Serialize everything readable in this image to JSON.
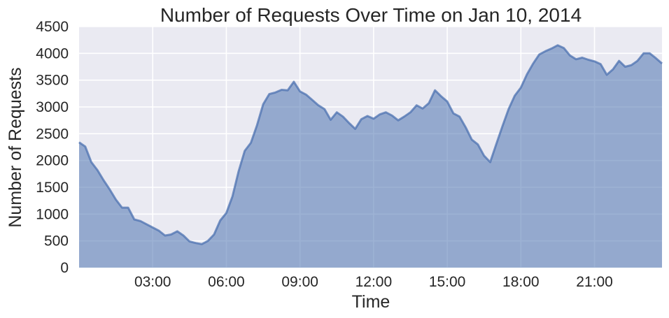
{
  "chart_data": {
    "type": "area",
    "title": "Number of Requests Over Time on Jan 10, 2014",
    "xlabel": "Time",
    "ylabel": "Number of Requests",
    "x_unit": "hours",
    "xlim": [
      0,
      23.75
    ],
    "ylim": [
      0,
      4500
    ],
    "yticks": [
      0,
      500,
      1000,
      1500,
      2000,
      2500,
      3000,
      3500,
      4000,
      4500
    ],
    "xticks": [
      {
        "value": 3,
        "label": "03:00"
      },
      {
        "value": 6,
        "label": "06:00"
      },
      {
        "value": 9,
        "label": "09:00"
      },
      {
        "value": 12,
        "label": "12:00"
      },
      {
        "value": 15,
        "label": "15:00"
      },
      {
        "value": 18,
        "label": "18:00"
      },
      {
        "value": 21,
        "label": "21:00"
      }
    ],
    "grid": true,
    "colors": {
      "background": "#EAEAF2",
      "grid": "#ffffff",
      "fill": "#4C72B0",
      "line": "#4C72B0"
    },
    "series": [
      {
        "x": [
          0,
          0.25,
          0.5,
          0.75,
          1,
          1.25,
          1.5,
          1.75,
          2,
          2.25,
          2.5,
          2.75,
          3,
          3.25,
          3.5,
          3.75,
          4,
          4.25,
          4.5,
          4.75,
          5,
          5.25,
          5.5,
          5.75,
          6,
          6.25,
          6.5,
          6.75,
          7,
          7.25,
          7.5,
          7.75,
          8,
          8.25,
          8.5,
          8.75,
          9,
          9.25,
          9.5,
          9.75,
          10,
          10.25,
          10.5,
          10.75,
          11,
          11.25,
          11.5,
          11.75,
          12,
          12.25,
          12.5,
          12.75,
          13,
          13.25,
          13.5,
          13.75,
          14,
          14.25,
          14.5,
          14.75,
          15,
          15.25,
          15.5,
          15.75,
          16,
          16.25,
          16.5,
          16.75,
          17,
          17.25,
          17.5,
          17.75,
          18,
          18.25,
          18.5,
          18.75,
          19,
          19.25,
          19.5,
          19.75,
          20,
          20.25,
          20.5,
          20.75,
          21,
          21.25,
          21.5,
          21.75,
          22,
          22.25,
          22.5,
          22.75,
          23,
          23.25,
          23.5,
          23.75
        ],
        "y": [
          2340,
          2260,
          1970,
          1820,
          1630,
          1460,
          1270,
          1120,
          1120,
          900,
          870,
          810,
          750,
          690,
          600,
          620,
          680,
          600,
          490,
          460,
          440,
          500,
          620,
          880,
          1020,
          1330,
          1800,
          2180,
          2330,
          2660,
          3050,
          3240,
          3270,
          3320,
          3310,
          3470,
          3290,
          3230,
          3130,
          3030,
          2960,
          2760,
          2900,
          2820,
          2700,
          2590,
          2770,
          2830,
          2780,
          2860,
          2900,
          2840,
          2750,
          2820,
          2900,
          3030,
          2970,
          3070,
          3310,
          3200,
          3100,
          2880,
          2820,
          2620,
          2390,
          2300,
          2090,
          1970,
          2310,
          2640,
          2960,
          3210,
          3360,
          3610,
          3810,
          3980,
          4040,
          4090,
          4150,
          4100,
          3960,
          3890,
          3920,
          3880,
          3850,
          3800,
          3600,
          3700,
          3860,
          3750,
          3780,
          3860,
          4000,
          4000,
          3910,
          3810
        ]
      }
    ]
  }
}
